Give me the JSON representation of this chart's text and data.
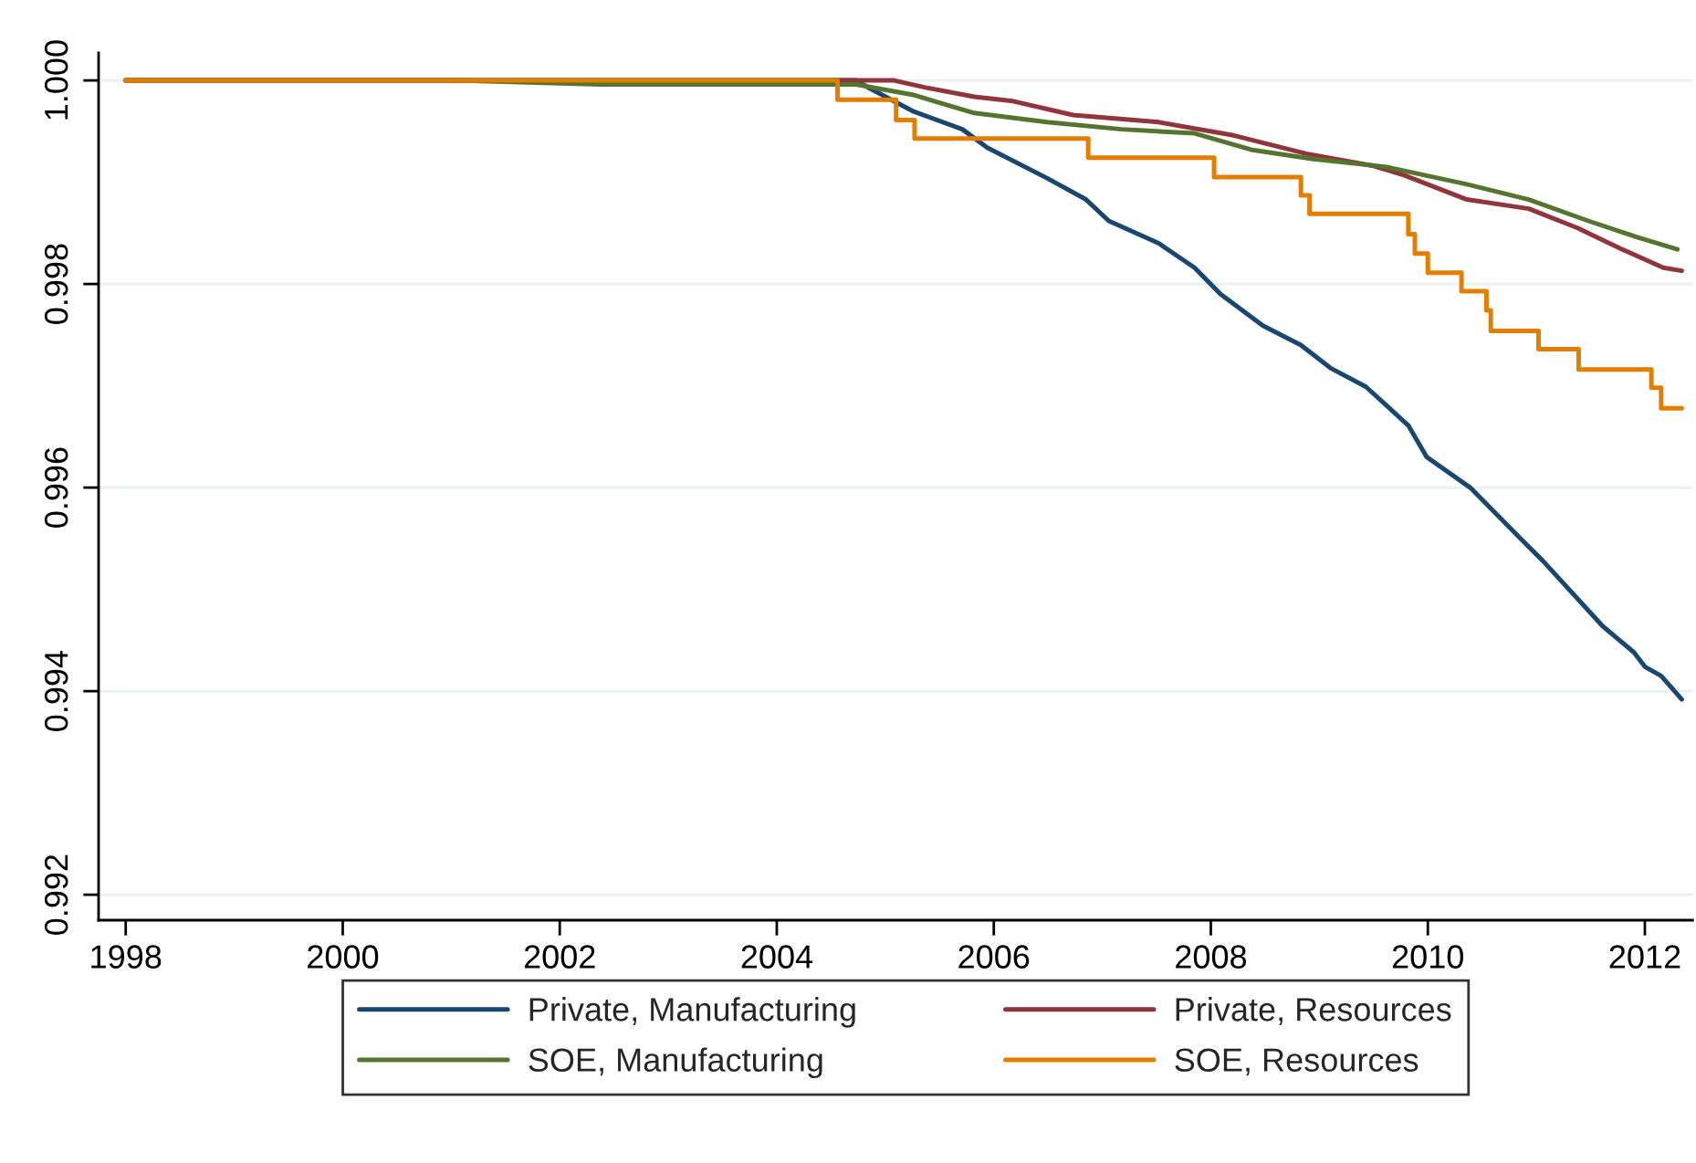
{
  "chart_data": {
    "type": "line",
    "xlim": [
      1997.75,
      2012.44
    ],
    "xticks": [
      1998,
      2000,
      2002,
      2004,
      2006,
      2008,
      2010,
      2012
    ],
    "ylim": [
      0.99175,
      1.00027
    ],
    "yticks": [
      {
        "value": 0.992,
        "label": "0.992"
      },
      {
        "value": 0.994,
        "label": "0.994"
      },
      {
        "value": 0.996,
        "label": "0.996"
      },
      {
        "value": 0.998,
        "label": "0.998"
      },
      {
        "value": 1.0,
        "label": "1.000"
      }
    ],
    "grid": "y",
    "legend": "bottom",
    "line_style": "solid",
    "marker": "none",
    "series": [
      {
        "name": "Private, Manufacturing",
        "color": "#1a476f",
        "x": [
          1998,
          2004.73,
          2004.86,
          2005.25,
          2005.71,
          2005.94,
          2006.49,
          2006.85,
          2007.06,
          2007.52,
          2007.85,
          2008.09,
          2008.48,
          2008.83,
          2009.11,
          2009.43,
          2009.82,
          2009.99,
          2010.39,
          2010.89,
          2011.06,
          2011.61,
          2011.9,
          2012.0,
          2012.15,
          2012.34
        ],
        "values": [
          1.0,
          1.0,
          0.99992,
          0.9997,
          0.99952,
          0.99934,
          0.99904,
          0.99883,
          0.99862,
          0.9984,
          0.99816,
          0.9979,
          0.99759,
          0.9974,
          0.99717,
          0.99699,
          0.99661,
          0.9963,
          0.996,
          0.99546,
          0.99528,
          0.99464,
          0.99438,
          0.99424,
          0.99415,
          0.99392
        ]
      },
      {
        "name": "Private, Resources",
        "color": "#90353b",
        "x": [
          1998,
          2005.08,
          2005.37,
          2005.82,
          2006.16,
          2006.73,
          2007.52,
          2008.21,
          2008.88,
          2009.5,
          2009.78,
          2010.36,
          2010.93,
          2011.38,
          2011.77,
          2012.17,
          2012.34
        ],
        "values": [
          1.0,
          1.0,
          0.99993,
          0.99984,
          0.9998,
          0.99966,
          0.99959,
          0.99946,
          0.99928,
          0.99916,
          0.99907,
          0.99883,
          0.99874,
          0.99855,
          0.99835,
          0.99816,
          0.99813
        ]
      },
      {
        "name": "SOE, Manufacturing",
        "color": "#55752f",
        "x": [
          1998,
          2001.04,
          2002.38,
          2004.73,
          2005.25,
          2005.82,
          2006.49,
          2007.18,
          2007.85,
          2008.37,
          2008.93,
          2009.62,
          2010.36,
          2010.93,
          2011.48,
          2011.93,
          2012.3
        ],
        "values": [
          1.0,
          1.0,
          0.99996,
          0.99996,
          0.99986,
          0.99968,
          0.99959,
          0.99952,
          0.99948,
          0.99932,
          0.99923,
          0.99915,
          0.99898,
          0.99883,
          0.99862,
          0.99846,
          0.99834
        ]
      },
      {
        "name": "SOE, Resources",
        "color": "#e37e00",
        "type": "step",
        "x": [
          1998,
          2004.56,
          2005.1,
          2005.27,
          2006.87,
          2008.03,
          2008.83,
          2008.91,
          2009.82,
          2009.88,
          2010.0,
          2010.31,
          2010.54,
          2010.58,
          2011.02,
          2011.39,
          2012.06,
          2012.15,
          2012.34
        ],
        "values": [
          1.0,
          0.99981,
          0.99961,
          0.99943,
          0.99924,
          0.99905,
          0.99887,
          0.99869,
          0.99849,
          0.9983,
          0.99811,
          0.99793,
          0.99774,
          0.99754,
          0.99736,
          0.99716,
          0.99698,
          0.99678,
          0.99678
        ]
      }
    ]
  }
}
